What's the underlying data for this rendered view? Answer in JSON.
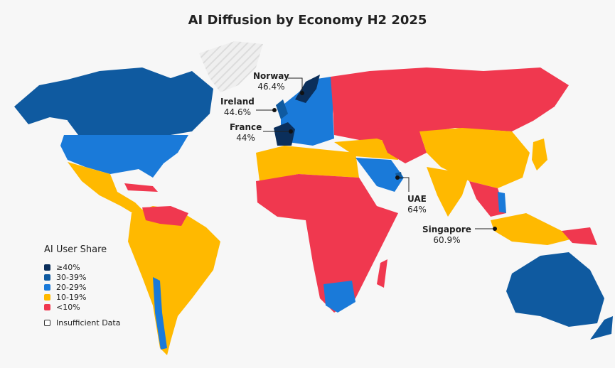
{
  "title": "AI Diffusion by Economy H2 2025",
  "colors": {
    "ge40": "#0b2f5b",
    "c30_39": "#0f5aa0",
    "c20_29": "#1a7ad9",
    "c10_19": "#ffb900",
    "lt10": "#f0384f",
    "background": "#f7f7f7"
  },
  "legend": {
    "title": "AI User Share",
    "items": [
      {
        "label": "≥40%",
        "color": "#0b2f5b"
      },
      {
        "label": "30-39%",
        "color": "#0f5aa0"
      },
      {
        "label": "20-29%",
        "color": "#1a7ad9"
      },
      {
        "label": "10-19%",
        "color": "#ffb900"
      },
      {
        "label": "<10%",
        "color": "#f0384f"
      }
    ],
    "insufficient": "Insufficient Data"
  },
  "callouts": [
    {
      "country": "Norway",
      "value": "46.4%"
    },
    {
      "country": "Ireland",
      "value": "44.6%"
    },
    {
      "country": "France",
      "value": "44%"
    },
    {
      "country": "UAE",
      "value": "64%"
    },
    {
      "country": "Singapore",
      "value": "60.9%"
    }
  ]
}
